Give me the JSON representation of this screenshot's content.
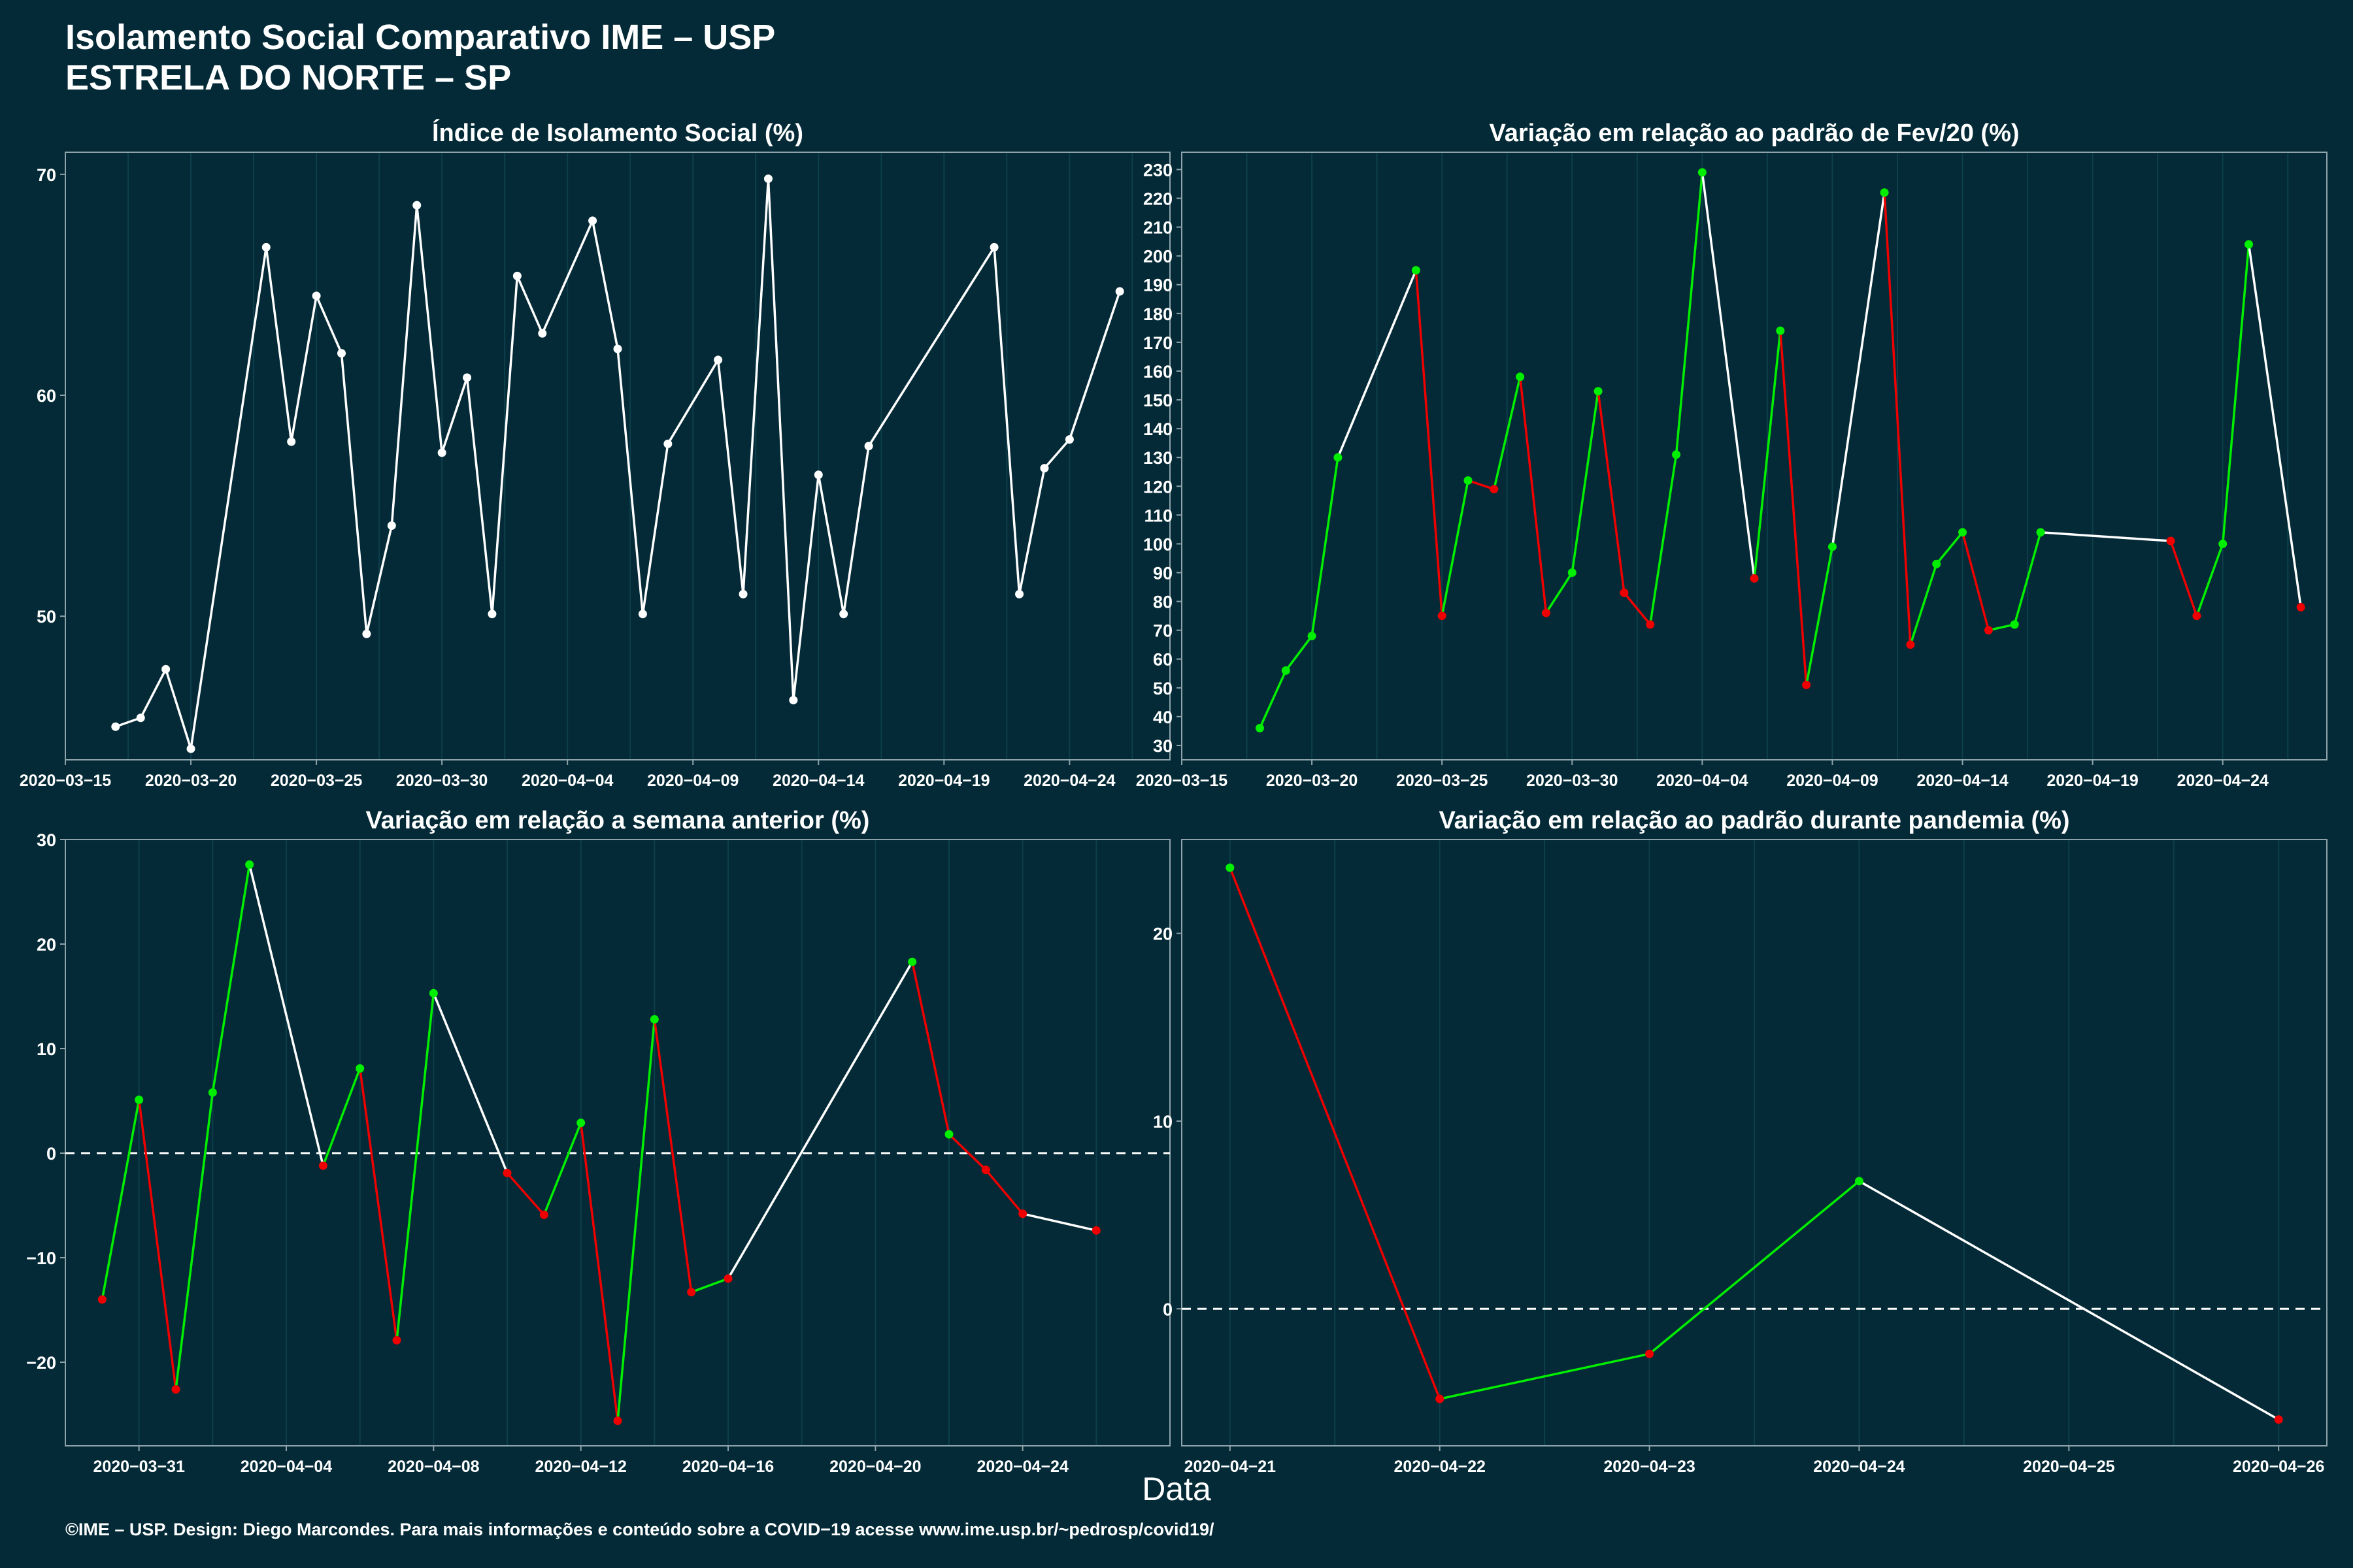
{
  "header": {
    "title": "Isolamento Social Comparativo IME – USP",
    "subtitle": "ESTRELA DO NORTE – SP"
  },
  "footer": {
    "text": "©IME – USP. Design: Diego Marcondes. Para mais informações e conteúdo sobre a COVID−19 acesse www.ime.usp.br/~pedrosp/covid19/"
  },
  "colors": {
    "background": "#032a36",
    "up": "#00ee00",
    "down": "#ee0000",
    "neutral": "#ffffff"
  },
  "chart_data": [
    {
      "id": "isolamento",
      "type": "line",
      "title": "Índice de Isolamento Social (%)",
      "xlabel": "Data",
      "xlim": [
        "2020-03-15",
        "2020-04-28"
      ],
      "ylim": [
        43.5,
        71
      ],
      "yticks": [
        50,
        60,
        70
      ],
      "xticks": [
        "2020-03-15",
        "2020-03-20",
        "2020-03-25",
        "2020-03-30",
        "2020-04-04",
        "2020-04-09",
        "2020-04-14",
        "2020-04-19",
        "2020-04-24"
      ],
      "color_mode": "neutral",
      "points": [
        [
          "2020-03-17",
          45.0
        ],
        [
          "2020-03-18",
          45.4
        ],
        [
          "2020-03-19",
          47.6
        ],
        [
          "2020-03-20",
          44.0
        ],
        [
          "2020-03-23",
          66.7
        ],
        [
          "2020-03-24",
          57.9
        ],
        [
          "2020-03-25",
          64.5
        ],
        [
          "2020-03-26",
          61.9
        ],
        [
          "2020-03-27",
          49.2
        ],
        [
          "2020-03-28",
          54.1
        ],
        [
          "2020-03-29",
          68.6
        ],
        [
          "2020-03-30",
          57.4
        ],
        [
          "2020-03-31",
          60.8
        ],
        [
          "2020-04-01",
          50.1
        ],
        [
          "2020-04-02",
          65.4
        ],
        [
          "2020-04-03",
          62.8
        ],
        [
          "2020-04-05",
          67.9
        ],
        [
          "2020-04-06",
          62.1
        ],
        [
          "2020-04-07",
          50.1
        ],
        [
          "2020-04-08",
          57.8
        ],
        [
          "2020-04-10",
          61.6
        ],
        [
          "2020-04-11",
          51.0
        ],
        [
          "2020-04-12",
          69.8
        ],
        [
          "2020-04-13",
          46.2
        ],
        [
          "2020-04-14",
          56.4
        ],
        [
          "2020-04-15",
          50.1
        ],
        [
          "2020-04-16",
          57.7
        ],
        [
          "2020-04-21",
          66.7
        ],
        [
          "2020-04-22",
          51.0
        ],
        [
          "2020-04-23",
          56.7
        ],
        [
          "2020-04-24",
          58.0
        ],
        [
          "2020-04-26",
          64.7
        ]
      ]
    },
    {
      "id": "fev20",
      "type": "line",
      "title": "Variação em relação ao padrão de Fev/20 (%)",
      "xlabel": "Data",
      "xlim": [
        "2020-03-15",
        "2020-04-28"
      ],
      "ylim": [
        25,
        236
      ],
      "yticks": [
        30,
        40,
        50,
        60,
        70,
        80,
        90,
        100,
        110,
        120,
        130,
        140,
        150,
        160,
        170,
        180,
        190,
        200,
        210,
        220,
        230
      ],
      "xticks": [
        "2020-03-15",
        "2020-03-20",
        "2020-03-25",
        "2020-03-30",
        "2020-04-04",
        "2020-04-09",
        "2020-04-14",
        "2020-04-19",
        "2020-04-24"
      ],
      "color_mode": "trend",
      "points": [
        [
          "2020-03-18",
          36
        ],
        [
          "2020-03-19",
          56
        ],
        [
          "2020-03-20",
          68
        ],
        [
          "2020-03-21",
          130
        ],
        [
          "2020-03-24",
          195
        ],
        [
          "2020-03-25",
          75
        ],
        [
          "2020-03-26",
          122
        ],
        [
          "2020-03-27",
          119
        ],
        [
          "2020-03-28",
          158
        ],
        [
          "2020-03-29",
          76
        ],
        [
          "2020-03-30",
          90
        ],
        [
          "2020-03-31",
          153
        ],
        [
          "2020-04-01",
          83
        ],
        [
          "2020-04-02",
          72
        ],
        [
          "2020-04-03",
          131
        ],
        [
          "2020-04-04",
          229
        ],
        [
          "2020-04-06",
          88
        ],
        [
          "2020-04-07",
          174
        ],
        [
          "2020-04-08",
          51
        ],
        [
          "2020-04-09",
          99
        ],
        [
          "2020-04-11",
          222
        ],
        [
          "2020-04-12",
          65
        ],
        [
          "2020-04-13",
          93
        ],
        [
          "2020-04-14",
          104
        ],
        [
          "2020-04-15",
          70
        ],
        [
          "2020-04-16",
          72
        ],
        [
          "2020-04-17",
          104
        ],
        [
          "2020-04-22",
          101
        ],
        [
          "2020-04-23",
          75
        ],
        [
          "2020-04-24",
          100
        ],
        [
          "2020-04-25",
          204
        ],
        [
          "2020-04-27",
          78
        ]
      ]
    },
    {
      "id": "semana",
      "type": "line",
      "title": "Variação em relação a semana anterior (%)",
      "xlabel": "Data",
      "xlim": [
        "2020-03-29",
        "2020-04-28"
      ],
      "ylim": [
        -28,
        30
      ],
      "yticks": [
        -20,
        -10,
        0,
        10,
        20,
        30
      ],
      "xticks": [
        "2020-03-31",
        "2020-04-04",
        "2020-04-08",
        "2020-04-12",
        "2020-04-16",
        "2020-04-20",
        "2020-04-24"
      ],
      "reference_line": 0,
      "color_mode": "sign",
      "points": [
        [
          "2020-03-30",
          -14.0
        ],
        [
          "2020-03-31",
          5.1
        ],
        [
          "2020-04-01",
          -22.6
        ],
        [
          "2020-04-02",
          5.8
        ],
        [
          "2020-04-03",
          27.6
        ],
        [
          "2020-04-05",
          -1.2
        ],
        [
          "2020-04-06",
          8.1
        ],
        [
          "2020-04-07",
          -17.9
        ],
        [
          "2020-04-08",
          15.3
        ],
        [
          "2020-04-10",
          -1.9
        ],
        [
          "2020-04-11",
          -5.9
        ],
        [
          "2020-04-12",
          2.9
        ],
        [
          "2020-04-13",
          -25.6
        ],
        [
          "2020-04-14",
          12.8
        ],
        [
          "2020-04-15",
          -13.3
        ],
        [
          "2020-04-16",
          -12.0
        ],
        [
          "2020-04-21",
          18.3
        ],
        [
          "2020-04-22",
          1.8
        ],
        [
          "2020-04-23",
          -1.6
        ],
        [
          "2020-04-24",
          -5.8
        ],
        [
          "2020-04-26",
          -7.4
        ]
      ]
    },
    {
      "id": "pandemia",
      "type": "line",
      "title": "Variação em relação ao padrão durante pandemia (%)",
      "xlabel": "Data",
      "xlim": [
        "2020-04-20.77",
        "2020-04-26.23"
      ],
      "ylim": [
        -7.3,
        25
      ],
      "yticks": [
        0,
        10,
        20
      ],
      "xticks": [
        "2020-04-21",
        "2020-04-22",
        "2020-04-23",
        "2020-04-24",
        "2020-04-25",
        "2020-04-26"
      ],
      "reference_line": 0,
      "color_mode": "sign",
      "points": [
        [
          "2020-04-21",
          23.5
        ],
        [
          "2020-04-22",
          -4.8
        ],
        [
          "2020-04-23",
          -2.4
        ],
        [
          "2020-04-24",
          6.8
        ],
        [
          "2020-04-26",
          -5.9
        ]
      ]
    }
  ]
}
